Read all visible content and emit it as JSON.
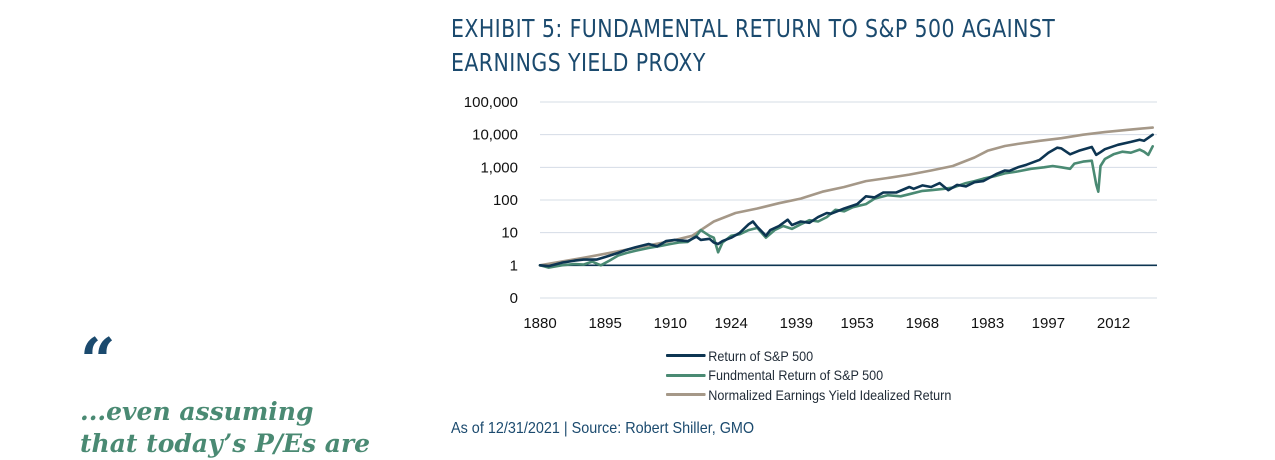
{
  "chart_data": {
    "type": "line",
    "title_lines": [
      "EXHIBIT 5: FUNDAMENTAL RETURN TO S&P 500 AGAINST",
      "EARNINGS YIELD PROXY"
    ],
    "y_scale": "log",
    "ylim": [
      0.1,
      100000
    ],
    "y_ticks": [
      {
        "value": 100000,
        "label": "100,000"
      },
      {
        "value": 10000,
        "label": "10,000"
      },
      {
        "value": 1000,
        "label": "1,000"
      },
      {
        "value": 100,
        "label": "100"
      },
      {
        "value": 10,
        "label": "10"
      },
      {
        "value": 1,
        "label": "1"
      },
      {
        "value": 0.1,
        "label": "0"
      }
    ],
    "xlim": [
      1880,
      2022
    ],
    "x_ticks": [
      1880,
      1895,
      1910,
      1924,
      1939,
      1953,
      1968,
      1983,
      1997,
      2012
    ],
    "grid": true,
    "reference_line": {
      "y": 1,
      "color": "#0d3552"
    },
    "legend_position": "bottom",
    "series": [
      {
        "name": "Return of S&P 500",
        "color": "#0d3552",
        "points": [
          [
            1880,
            1
          ],
          [
            1882,
            0.95
          ],
          [
            1885,
            1.2
          ],
          [
            1888,
            1.4
          ],
          [
            1890,
            1.5
          ],
          [
            1893,
            1.5
          ],
          [
            1895,
            1.8
          ],
          [
            1898,
            2.4
          ],
          [
            1900,
            3
          ],
          [
            1902,
            3.6
          ],
          [
            1905,
            4.5
          ],
          [
            1907,
            3.8
          ],
          [
            1909,
            5.5
          ],
          [
            1911,
            6
          ],
          [
            1914,
            5.5
          ],
          [
            1916,
            7.5
          ],
          [
            1917,
            6
          ],
          [
            1919,
            6.5
          ],
          [
            1920,
            5
          ],
          [
            1921,
            4.5
          ],
          [
            1922,
            5.5
          ],
          [
            1924,
            7
          ],
          [
            1926,
            10
          ],
          [
            1928,
            18
          ],
          [
            1929,
            22
          ],
          [
            1930,
            15
          ],
          [
            1932,
            8
          ],
          [
            1933,
            12
          ],
          [
            1935,
            16
          ],
          [
            1937,
            25
          ],
          [
            1938,
            17
          ],
          [
            1940,
            22
          ],
          [
            1942,
            20
          ],
          [
            1944,
            30
          ],
          [
            1946,
            40
          ],
          [
            1947,
            38
          ],
          [
            1950,
            55
          ],
          [
            1953,
            75
          ],
          [
            1955,
            130
          ],
          [
            1957,
            120
          ],
          [
            1959,
            170
          ],
          [
            1962,
            170
          ],
          [
            1965,
            250
          ],
          [
            1966,
            220
          ],
          [
            1968,
            280
          ],
          [
            1970,
            250
          ],
          [
            1972,
            330
          ],
          [
            1974,
            200
          ],
          [
            1976,
            290
          ],
          [
            1978,
            260
          ],
          [
            1980,
            350
          ],
          [
            1982,
            380
          ],
          [
            1985,
            620
          ],
          [
            1987,
            800
          ],
          [
            1988,
            780
          ],
          [
            1990,
            1000
          ],
          [
            1992,
            1200
          ],
          [
            1995,
            1700
          ],
          [
            1997,
            2800
          ],
          [
            1999,
            4000
          ],
          [
            2000,
            3800
          ],
          [
            2002,
            2500
          ],
          [
            2004,
            3200
          ],
          [
            2007,
            4200
          ],
          [
            2008,
            2400
          ],
          [
            2009,
            2900
          ],
          [
            2010,
            3600
          ],
          [
            2013,
            4900
          ],
          [
            2016,
            6000
          ],
          [
            2018,
            7000
          ],
          [
            2019,
            6500
          ],
          [
            2020,
            8000
          ],
          [
            2021,
            10000
          ]
        ]
      },
      {
        "name": "Fundmental Return of S&P 500",
        "color": "#4a8a73",
        "points": [
          [
            1880,
            1
          ],
          [
            1882,
            0.85
          ],
          [
            1885,
            1
          ],
          [
            1888,
            1.1
          ],
          [
            1890,
            1.05
          ],
          [
            1892,
            1.3
          ],
          [
            1894,
            1
          ],
          [
            1896,
            1.4
          ],
          [
            1898,
            2
          ],
          [
            1900,
            2.4
          ],
          [
            1902,
            2.8
          ],
          [
            1905,
            3.4
          ],
          [
            1908,
            4
          ],
          [
            1910,
            4.5
          ],
          [
            1912,
            5
          ],
          [
            1914,
            5.2
          ],
          [
            1916,
            8
          ],
          [
            1917,
            12
          ],
          [
            1919,
            8
          ],
          [
            1920,
            7
          ],
          [
            1921,
            2.5
          ],
          [
            1922,
            5
          ],
          [
            1924,
            8
          ],
          [
            1926,
            9
          ],
          [
            1928,
            12
          ],
          [
            1930,
            14
          ],
          [
            1932,
            7
          ],
          [
            1934,
            12
          ],
          [
            1936,
            16
          ],
          [
            1938,
            13
          ],
          [
            1940,
            18
          ],
          [
            1942,
            24
          ],
          [
            1944,
            22
          ],
          [
            1946,
            30
          ],
          [
            1948,
            50
          ],
          [
            1950,
            45
          ],
          [
            1952,
            60
          ],
          [
            1955,
            75
          ],
          [
            1957,
            110
          ],
          [
            1960,
            140
          ],
          [
            1963,
            130
          ],
          [
            1965,
            150
          ],
          [
            1968,
            190
          ],
          [
            1970,
            200
          ],
          [
            1973,
            220
          ],
          [
            1975,
            240
          ],
          [
            1978,
            330
          ],
          [
            1980,
            380
          ],
          [
            1982,
            450
          ],
          [
            1985,
            550
          ],
          [
            1987,
            650
          ],
          [
            1990,
            750
          ],
          [
            1993,
            900
          ],
          [
            1996,
            1000
          ],
          [
            1998,
            1100
          ],
          [
            2000,
            1000
          ],
          [
            2002,
            900
          ],
          [
            2003,
            1300
          ],
          [
            2005,
            1500
          ],
          [
            2007,
            1600
          ],
          [
            2008,
            300
          ],
          [
            2008.5,
            180
          ],
          [
            2009,
            1100
          ],
          [
            2010,
            1800
          ],
          [
            2012,
            2500
          ],
          [
            2014,
            3000
          ],
          [
            2016,
            2800
          ],
          [
            2018,
            3500
          ],
          [
            2019,
            3000
          ],
          [
            2020,
            2400
          ],
          [
            2021,
            4400
          ]
        ]
      },
      {
        "name": "Normalized Earnings Yield Idealized Return",
        "color": "#a59888",
        "points": [
          [
            1880,
            1
          ],
          [
            1890,
            1.7
          ],
          [
            1900,
            3
          ],
          [
            1910,
            5.5
          ],
          [
            1915,
            8
          ],
          [
            1920,
            22
          ],
          [
            1925,
            40
          ],
          [
            1930,
            55
          ],
          [
            1935,
            80
          ],
          [
            1940,
            110
          ],
          [
            1945,
            180
          ],
          [
            1950,
            250
          ],
          [
            1955,
            380
          ],
          [
            1960,
            470
          ],
          [
            1965,
            600
          ],
          [
            1970,
            800
          ],
          [
            1975,
            1100
          ],
          [
            1980,
            2000
          ],
          [
            1983,
            3200
          ],
          [
            1987,
            4500
          ],
          [
            1990,
            5200
          ],
          [
            1995,
            6500
          ],
          [
            2000,
            7800
          ],
          [
            2005,
            10000
          ],
          [
            2010,
            12000
          ],
          [
            2015,
            14000
          ],
          [
            2021,
            16500
          ]
        ]
      }
    ]
  },
  "legend": [
    {
      "label": "Return of S&P 500",
      "color": "#0d3552"
    },
    {
      "label": "Fundmental Return of S&P 500",
      "color": "#4a8a73"
    },
    {
      "label": "Normalized Earnings Yield Idealized Return",
      "color": "#a59888"
    }
  ],
  "source": "As of 12/31/2021 | Source: Robert Shiller, GMO",
  "quote": {
    "mark": "“",
    "lines": [
      "...even assuming",
      "that today’s P/Es are"
    ]
  }
}
